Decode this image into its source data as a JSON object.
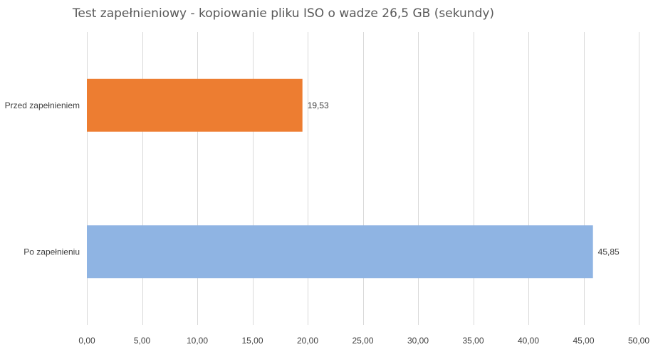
{
  "chart_data": {
    "type": "bar",
    "orientation": "horizontal",
    "title": "Test zapełnieniowy - kopiowanie pliku ISO o wadze 26,5 GB (sekundy)",
    "xlabel": "",
    "ylabel": "",
    "categories": [
      "Przed zapełnieniem",
      "Po zapełnieniu"
    ],
    "values": [
      19.53,
      45.85
    ],
    "value_labels": [
      "19,53",
      "45,85"
    ],
    "colors": [
      "#ED7D31",
      "#8FB4E3"
    ],
    "xlim": [
      0,
      50
    ],
    "x_ticks": [
      0,
      5,
      10,
      15,
      20,
      25,
      30,
      35,
      40,
      45,
      50
    ],
    "x_tick_labels": [
      "0,00",
      "5,00",
      "10,00",
      "15,00",
      "20,00",
      "25,00",
      "30,00",
      "35,00",
      "40,00",
      "45,00",
      "50,00"
    ],
    "grid": "vertical",
    "legend": "none"
  }
}
